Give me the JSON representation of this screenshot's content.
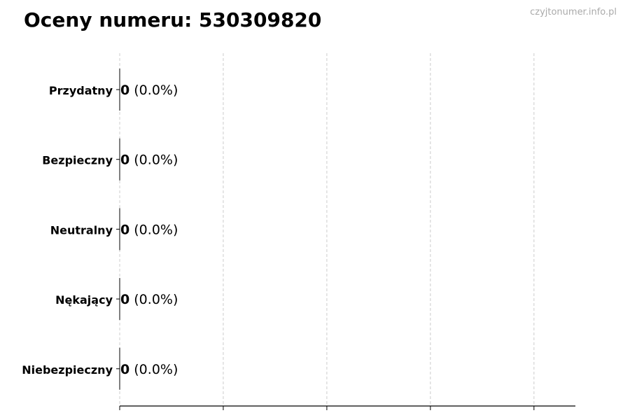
{
  "chart_data": {
    "type": "bar",
    "orientation": "horizontal",
    "title": "Oceny numeru: 530309820",
    "watermark": "czyjtonumer.info.pl",
    "categories": [
      "Przydatny",
      "Bezpieczny",
      "Neutralny",
      "Nękający",
      "Niebezpieczny"
    ],
    "values": [
      0,
      0,
      0,
      0,
      0
    ],
    "percent_labels": [
      "(0.0%)",
      "(0.0%)",
      "(0.0%)",
      "(0.0%)",
      "(0.0%)"
    ],
    "xlabel": "",
    "ylabel": "",
    "xlim": [
      0,
      4.4
    ],
    "x_ticks": [
      0,
      1,
      2,
      3,
      4
    ],
    "x_tick_labels_shown": false,
    "grid": "vertical dashed",
    "colors": {
      "bar_edge": "#000000",
      "grid": "#cccccc",
      "watermark": "#aaaaaa"
    }
  }
}
